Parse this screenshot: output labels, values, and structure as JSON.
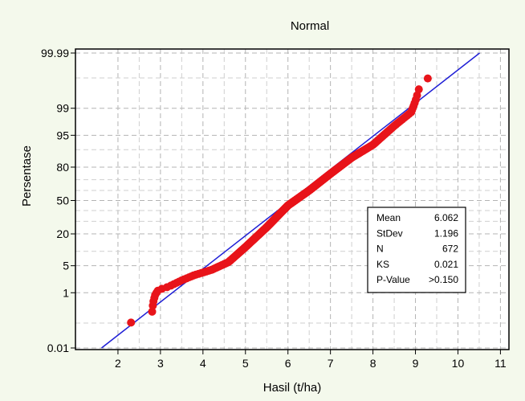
{
  "chart_data": {
    "type": "scatter",
    "title": "Normal",
    "xlabel": "Hasil (t/ha)",
    "ylabel": "Persentase",
    "xlim": [
      1,
      11.2
    ],
    "x_ticks": [
      2,
      3,
      4,
      5,
      6,
      7,
      8,
      9,
      10,
      11
    ],
    "y_scale": "normal-probability",
    "y_ticks": [
      {
        "value": 0.01,
        "label": "0.01"
      },
      {
        "value": 1,
        "label": "1"
      },
      {
        "value": 5,
        "label": "5"
      },
      {
        "value": 20,
        "label": "20"
      },
      {
        "value": 50,
        "label": "50"
      },
      {
        "value": 80,
        "label": "80"
      },
      {
        "value": 95,
        "label": "95"
      },
      {
        "value": 99,
        "label": "99"
      },
      {
        "value": 99.99,
        "label": "99.99"
      }
    ],
    "grid": true,
    "fit_line": {
      "mean": 6.062,
      "stdev": 1.196,
      "color": "#1f1fd6"
    },
    "point_color": "#e8141a",
    "points": {
      "n": 672,
      "sample_points": [
        {
          "x": 2.1,
          "p": 0.0744
        },
        {
          "x": 2.8,
          "p": 0.223
        },
        {
          "x": 2.83,
          "p": 0.52
        },
        {
          "x": 2.88,
          "p": 0.9
        },
        {
          "x": 2.95,
          "p": 1.2
        },
        {
          "x": 3.2,
          "p": 1.5
        },
        {
          "x": 3.5,
          "p": 2.2
        },
        {
          "x": 3.8,
          "p": 3.0
        },
        {
          "x": 4.2,
          "p": 4.0
        },
        {
          "x": 4.6,
          "p": 6.0
        },
        {
          "x": 5.0,
          "p": 12.0
        },
        {
          "x": 5.5,
          "p": 25.0
        },
        {
          "x": 6.0,
          "p": 45.0
        },
        {
          "x": 6.5,
          "p": 60.0
        },
        {
          "x": 7.0,
          "p": 75.0
        },
        {
          "x": 7.5,
          "p": 86.0
        },
        {
          "x": 8.0,
          "p": 92.0
        },
        {
          "x": 8.5,
          "p": 97.0
        },
        {
          "x": 8.9,
          "p": 98.7
        },
        {
          "x": 9.0,
          "p": 99.4
        },
        {
          "x": 9.1,
          "p": 99.8
        },
        {
          "x": 9.4,
          "p": 99.93
        }
      ]
    },
    "stats": [
      {
        "label": "Mean",
        "value": "6.062"
      },
      {
        "label": "StDev",
        "value": "1.196"
      },
      {
        "label": "N",
        "value": "672"
      },
      {
        "label": "KS",
        "value": "0.021"
      },
      {
        "label": "P-Value",
        "value": ">0.150"
      }
    ]
  }
}
